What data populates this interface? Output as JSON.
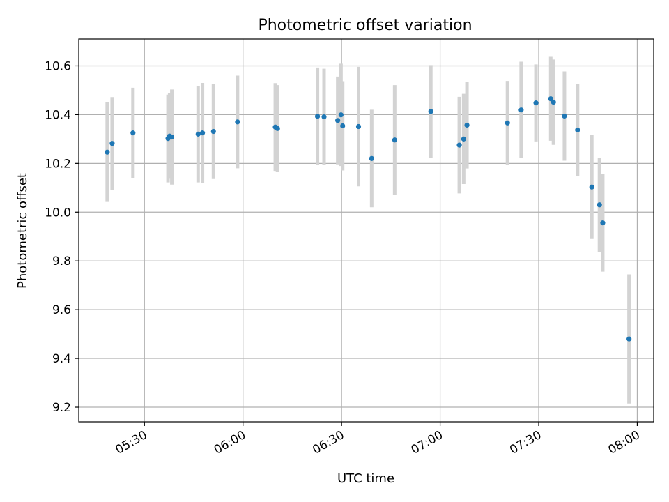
{
  "chart_data": {
    "type": "scatter",
    "title": "Photometric offset variation",
    "xlabel": "UTC time",
    "ylabel": "Photometric offset",
    "grid": true,
    "x_ticks": [
      "05:30",
      "06:00",
      "06:30",
      "07:00",
      "07:30",
      "08:00"
    ],
    "xlim": [
      "05:10",
      "08:05"
    ],
    "y_ticks": [
      "9.2",
      "9.4",
      "9.6",
      "9.8",
      "10.0",
      "10.2",
      "10.4",
      "10.6"
    ],
    "ylim": [
      9.14,
      10.71
    ],
    "colors": {
      "point": "#1f77b4",
      "errorbar": "#d3d3d3",
      "grid": "#b0b0b0"
    },
    "series": [
      {
        "points": [
          {
            "time": "05:18:40",
            "y": 10.246,
            "yerr": 0.204
          },
          {
            "time": "05:20:10",
            "y": 10.282,
            "yerr": 0.19
          },
          {
            "time": "05:26:30",
            "y": 10.325,
            "yerr": 0.185
          },
          {
            "time": "05:37:10",
            "y": 10.302,
            "yerr": 0.18
          },
          {
            "time": "05:37:40",
            "y": 10.312,
            "yerr": 0.175
          },
          {
            "time": "05:38:20",
            "y": 10.308,
            "yerr": 0.195
          },
          {
            "time": "05:46:20",
            "y": 10.32,
            "yerr": 0.198
          },
          {
            "time": "05:47:40",
            "y": 10.325,
            "yerr": 0.205
          },
          {
            "time": "05:51:00",
            "y": 10.331,
            "yerr": 0.195
          },
          {
            "time": "05:58:20",
            "y": 10.37,
            "yerr": 0.19
          },
          {
            "time": "06:09:50",
            "y": 10.349,
            "yerr": 0.18
          },
          {
            "time": "06:10:30",
            "y": 10.343,
            "yerr": 0.178
          },
          {
            "time": "06:22:40",
            "y": 10.393,
            "yerr": 0.2
          },
          {
            "time": "06:24:40",
            "y": 10.391,
            "yerr": 0.197
          },
          {
            "time": "06:28:50",
            "y": 10.376,
            "yerr": 0.18
          },
          {
            "time": "06:29:50",
            "y": 10.399,
            "yerr": 0.21
          },
          {
            "time": "06:30:20",
            "y": 10.354,
            "yerr": 0.183
          },
          {
            "time": "06:35:10",
            "y": 10.351,
            "yerr": 0.245
          },
          {
            "time": "06:39:10",
            "y": 10.22,
            "yerr": 0.2
          },
          {
            "time": "06:46:10",
            "y": 10.296,
            "yerr": 0.225
          },
          {
            "time": "06:57:10",
            "y": 10.413,
            "yerr": 0.19
          },
          {
            "time": "07:05:50",
            "y": 10.275,
            "yerr": 0.198
          },
          {
            "time": "07:07:10",
            "y": 10.3,
            "yerr": 0.185
          },
          {
            "time": "07:08:10",
            "y": 10.357,
            "yerr": 0.178
          },
          {
            "time": "07:20:30",
            "y": 10.366,
            "yerr": 0.172
          },
          {
            "time": "07:24:40",
            "y": 10.419,
            "yerr": 0.198
          },
          {
            "time": "07:29:10",
            "y": 10.448,
            "yerr": 0.158
          },
          {
            "time": "07:33:40",
            "y": 10.465,
            "yerr": 0.172
          },
          {
            "time": "07:34:30",
            "y": 10.451,
            "yerr": 0.175
          },
          {
            "time": "07:37:50",
            "y": 10.394,
            "yerr": 0.183
          },
          {
            "time": "07:41:50",
            "y": 10.337,
            "yerr": 0.19
          },
          {
            "time": "07:46:10",
            "y": 10.103,
            "yerr": 0.213
          },
          {
            "time": "07:48:30",
            "y": 10.03,
            "yerr": 0.194
          },
          {
            "time": "07:49:30",
            "y": 9.956,
            "yerr": 0.2
          },
          {
            "time": "07:57:30",
            "y": 9.48,
            "yerr": 0.265
          }
        ]
      }
    ]
  }
}
